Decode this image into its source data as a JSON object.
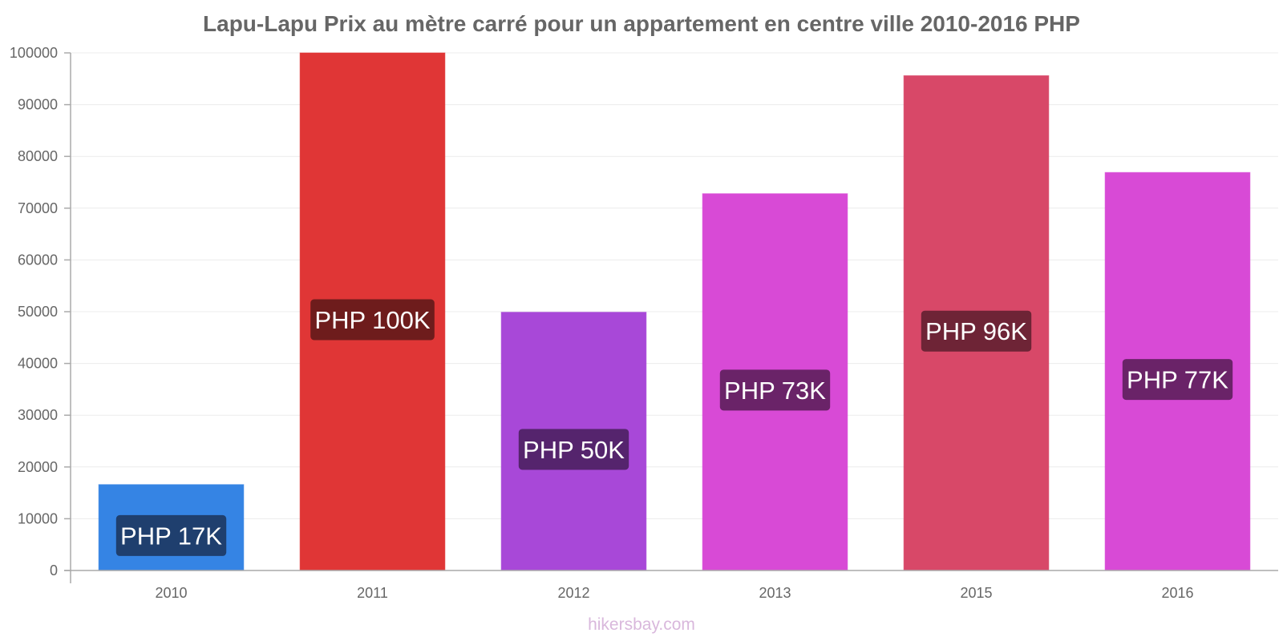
{
  "title": "Lapu-Lapu Prix au mètre carré pour un appartement en centre ville 2010-2016 PHP",
  "watermark": "hikersbay.com",
  "chart_data": {
    "type": "bar",
    "title": "Lapu-Lapu Prix au mètre carré pour un appartement en centre ville 2010-2016 PHP",
    "xlabel": "",
    "ylabel": "",
    "categories": [
      "2010",
      "2011",
      "2012",
      "2013",
      "2015",
      "2016"
    ],
    "values": [
      16600,
      100000,
      49900,
      72800,
      95600,
      76900
    ],
    "data_labels": [
      "PHP 17K",
      "PHP 100K",
      "PHP 50K",
      "PHP 73K",
      "PHP 96K",
      "PHP 77K"
    ],
    "bar_colors": [
      "#3584e4",
      "#e03636",
      "#a848d8",
      "#d84ad6",
      "#d84868",
      "#d84ad6"
    ],
    "label_bg_colors": [
      "#1f3f6e",
      "#6e1c1c",
      "#55246d",
      "#6a2368",
      "#6e2436",
      "#6a2368"
    ],
    "ylim": [
      0,
      100000
    ],
    "yticks": [
      0,
      10000,
      20000,
      30000,
      40000,
      50000,
      60000,
      70000,
      80000,
      90000,
      100000
    ],
    "grid": true,
    "legend": "none"
  }
}
